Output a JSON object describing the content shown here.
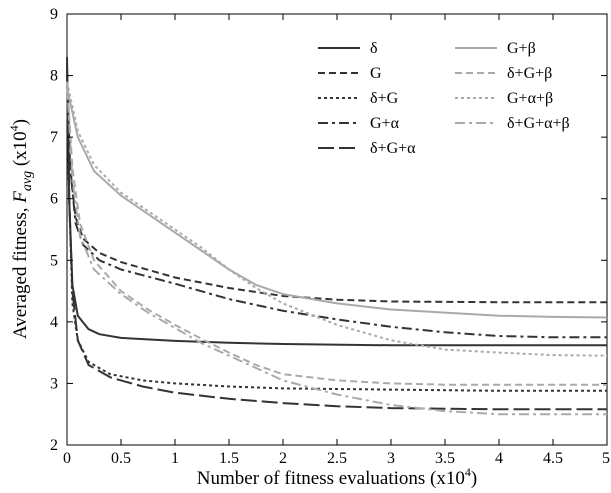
{
  "chart_data": {
    "type": "line",
    "xlabel": "Number of fitness evaluations (x10",
    "xlabel_exp": "4",
    "xlabel_close": ")",
    "ylabel_prefix": "Averaged fitness, ",
    "ylabel_var": "F",
    "ylabel_sub": "avg",
    "ylabel_unit": " (x10",
    "ylabel_exp": "4",
    "ylabel_close": ")",
    "xlim": [
      0,
      5
    ],
    "ylim": [
      2,
      9
    ],
    "x_ticks": [
      "0",
      "0.5",
      "1",
      "1.5",
      "2",
      "2.5",
      "3",
      "3.5",
      "4",
      "4.5",
      "5"
    ],
    "y_ticks": [
      "2",
      "3",
      "4",
      "5",
      "6",
      "7",
      "8",
      "9"
    ],
    "grid": false,
    "legend_position": "top-right",
    "series": [
      {
        "name": "δ",
        "color": "#333333",
        "dash": "solid",
        "points": [
          [
            0,
            8.3
          ],
          [
            0.02,
            6.0
          ],
          [
            0.05,
            4.6
          ],
          [
            0.1,
            4.1
          ],
          [
            0.2,
            3.88
          ],
          [
            0.3,
            3.8
          ],
          [
            0.5,
            3.74
          ],
          [
            1,
            3.69
          ],
          [
            1.5,
            3.66
          ],
          [
            2,
            3.64
          ],
          [
            3,
            3.62
          ],
          [
            4,
            3.62
          ],
          [
            5,
            3.62
          ]
        ]
      },
      {
        "name": "G",
        "color": "#333333",
        "dash": "dashed",
        "points": [
          [
            0,
            8.0
          ],
          [
            0.03,
            6.5
          ],
          [
            0.08,
            5.7
          ],
          [
            0.15,
            5.35
          ],
          [
            0.3,
            5.12
          ],
          [
            0.5,
            4.97
          ],
          [
            1,
            4.72
          ],
          [
            1.5,
            4.55
          ],
          [
            2,
            4.42
          ],
          [
            2.5,
            4.36
          ],
          [
            3,
            4.33
          ],
          [
            4,
            4.32
          ],
          [
            5,
            4.32
          ]
        ]
      },
      {
        "name": "δ+G",
        "color": "#333333",
        "dash": "dotted",
        "points": [
          [
            0,
            8.1
          ],
          [
            0.02,
            6.0
          ],
          [
            0.05,
            4.3
          ],
          [
            0.1,
            3.7
          ],
          [
            0.2,
            3.35
          ],
          [
            0.4,
            3.15
          ],
          [
            0.7,
            3.05
          ],
          [
            1,
            3.0
          ],
          [
            1.5,
            2.95
          ],
          [
            2,
            2.92
          ],
          [
            3,
            2.9
          ],
          [
            4,
            2.88
          ],
          [
            5,
            2.88
          ]
        ]
      },
      {
        "name": "G+α",
        "color": "#333333",
        "dash": "dashdot",
        "points": [
          [
            0,
            8.0
          ],
          [
            0.03,
            6.5
          ],
          [
            0.08,
            5.6
          ],
          [
            0.15,
            5.25
          ],
          [
            0.3,
            5.0
          ],
          [
            0.5,
            4.85
          ],
          [
            1,
            4.62
          ],
          [
            1.5,
            4.37
          ],
          [
            2,
            4.18
          ],
          [
            2.5,
            4.04
          ],
          [
            3,
            3.92
          ],
          [
            3.5,
            3.83
          ],
          [
            4,
            3.77
          ],
          [
            4.5,
            3.75
          ],
          [
            5,
            3.75
          ]
        ]
      },
      {
        "name": "δ+G+α",
        "color": "#333333",
        "dash": "longdash",
        "points": [
          [
            0,
            8.2
          ],
          [
            0.02,
            6.0
          ],
          [
            0.05,
            4.5
          ],
          [
            0.1,
            3.7
          ],
          [
            0.2,
            3.3
          ],
          [
            0.4,
            3.1
          ],
          [
            0.7,
            2.95
          ],
          [
            1,
            2.85
          ],
          [
            1.5,
            2.75
          ],
          [
            2,
            2.68
          ],
          [
            2.5,
            2.63
          ],
          [
            3,
            2.6
          ],
          [
            4,
            2.58
          ],
          [
            5,
            2.58
          ]
        ]
      },
      {
        "name": "G+β",
        "color": "#aaaaaa",
        "dash": "solid",
        "points": [
          [
            0,
            7.8
          ],
          [
            0.1,
            7.0
          ],
          [
            0.25,
            6.45
          ],
          [
            0.5,
            6.05
          ],
          [
            0.75,
            5.75
          ],
          [
            1,
            5.45
          ],
          [
            1.25,
            5.15
          ],
          [
            1.5,
            4.85
          ],
          [
            1.75,
            4.6
          ],
          [
            2,
            4.45
          ],
          [
            2.5,
            4.3
          ],
          [
            3,
            4.2
          ],
          [
            3.5,
            4.15
          ],
          [
            4,
            4.1
          ],
          [
            4.5,
            4.08
          ],
          [
            5,
            4.07
          ]
        ]
      },
      {
        "name": "δ+G+β",
        "color": "#aaaaaa",
        "dash": "dashed",
        "points": [
          [
            0,
            7.9
          ],
          [
            0.05,
            6.5
          ],
          [
            0.12,
            5.6
          ],
          [
            0.25,
            5.0
          ],
          [
            0.5,
            4.5
          ],
          [
            0.75,
            4.2
          ],
          [
            1,
            3.95
          ],
          [
            1.25,
            3.72
          ],
          [
            1.5,
            3.5
          ],
          [
            1.75,
            3.3
          ],
          [
            2,
            3.15
          ],
          [
            2.5,
            3.05
          ],
          [
            3,
            3.0
          ],
          [
            3.5,
            2.98
          ],
          [
            4,
            2.98
          ],
          [
            5,
            2.98
          ]
        ]
      },
      {
        "name": "G+α+β",
        "color": "#aaaaaa",
        "dash": "dotted",
        "points": [
          [
            0,
            7.9
          ],
          [
            0.1,
            7.1
          ],
          [
            0.25,
            6.55
          ],
          [
            0.5,
            6.1
          ],
          [
            0.75,
            5.8
          ],
          [
            1,
            5.5
          ],
          [
            1.25,
            5.2
          ],
          [
            1.5,
            4.85
          ],
          [
            1.75,
            4.55
          ],
          [
            2,
            4.3
          ],
          [
            2.5,
            3.95
          ],
          [
            3,
            3.7
          ],
          [
            3.5,
            3.55
          ],
          [
            4,
            3.5
          ],
          [
            4.5,
            3.46
          ],
          [
            5,
            3.45
          ]
        ]
      },
      {
        "name": "δ+G+α+β",
        "color": "#aaaaaa",
        "dash": "dashdot",
        "points": [
          [
            0,
            7.9
          ],
          [
            0.05,
            6.3
          ],
          [
            0.12,
            5.4
          ],
          [
            0.25,
            4.85
          ],
          [
            0.5,
            4.45
          ],
          [
            0.75,
            4.15
          ],
          [
            1,
            3.9
          ],
          [
            1.25,
            3.65
          ],
          [
            1.5,
            3.45
          ],
          [
            1.75,
            3.25
          ],
          [
            2,
            3.05
          ],
          [
            2.5,
            2.82
          ],
          [
            3,
            2.65
          ],
          [
            3.5,
            2.55
          ],
          [
            4,
            2.5
          ],
          [
            4.5,
            2.5
          ],
          [
            5,
            2.5
          ]
        ]
      }
    ]
  }
}
